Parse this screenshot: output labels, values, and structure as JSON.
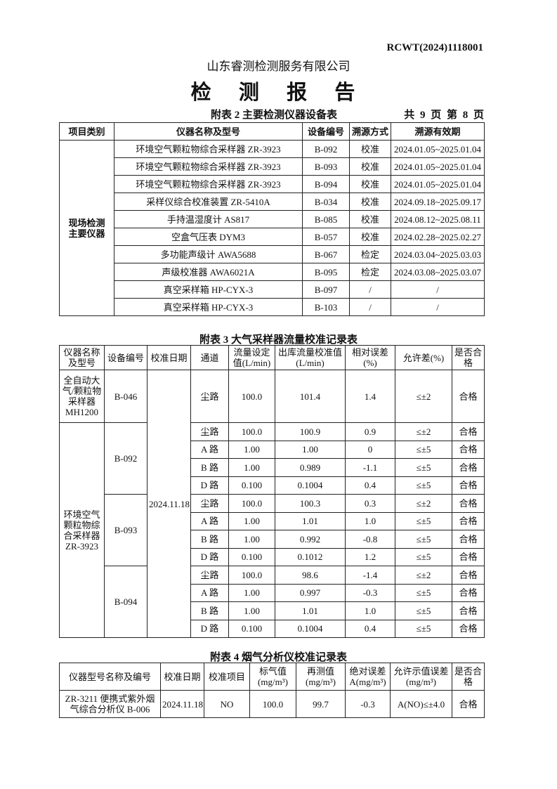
{
  "doc_no": "RCWT(2024)1118001",
  "company": "山东睿测检测服务有限公司",
  "title": "检 测 报 告",
  "table2": {
    "caption": "附表 2  主要检测仪器设备表",
    "pages": "共 9 页   第 8 页",
    "headers": [
      "项目类别",
      "仪器名称及型号",
      "设备编号",
      "溯源方式",
      "溯源有效期"
    ],
    "category": "现场检测\n主要仪器",
    "rows": [
      [
        "环境空气颗粒物综合采样器 ZR-3923",
        "B-092",
        "校准",
        "2024.01.05~2025.01.04"
      ],
      [
        "环境空气颗粒物综合采样器 ZR-3923",
        "B-093",
        "校准",
        "2024.01.05~2025.01.04"
      ],
      [
        "环境空气颗粒物综合采样器 ZR-3923",
        "B-094",
        "校准",
        "2024.01.05~2025.01.04"
      ],
      [
        "采样仪综合校准装置 ZR-5410A",
        "B-034",
        "校准",
        "2024.09.18~2025.09.17"
      ],
      [
        "手持温湿度计 AS817",
        "B-085",
        "校准",
        "2024.08.12~2025.08.11"
      ],
      [
        "空盒气压表 DYM3",
        "B-057",
        "校准",
        "2024.02.28~2025.02.27"
      ],
      [
        "多功能声级计 AWA5688",
        "B-067",
        "检定",
        "2024.03.04~2025.03.03"
      ],
      [
        "声级校准器 AWA6021A",
        "B-095",
        "检定",
        "2024.03.08~2025.03.07"
      ],
      [
        "真空采样箱 HP-CYX-3",
        "B-097",
        "/",
        "/"
      ],
      [
        "真空采样箱 HP-CYX-3",
        "B-103",
        "/",
        "/"
      ]
    ]
  },
  "table3": {
    "caption": "附表 3  大气采样器流量校准记录表",
    "headers": [
      "仪器名称及型号",
      "设备编号",
      "校准日期",
      "通道",
      "流量设定值(L/min)",
      "出库流量校准值(L/min)",
      "相对误差(%)",
      "允许差(%)",
      "是否合格"
    ],
    "date": "2024.11.18",
    "instrument1": "全自动大气/颗粒物采样器MH1200",
    "device1": "B-046",
    "row1": [
      "尘路",
      "100.0",
      "101.4",
      "1.4",
      "≤±2",
      "合格"
    ],
    "instrument2": "环境空气颗粒物综合采样器ZR-3923",
    "groups": [
      {
        "device": "B-092",
        "rows": [
          [
            "尘路",
            "100.0",
            "100.9",
            "0.9",
            "≤±2",
            "合格"
          ],
          [
            "A 路",
            "1.00",
            "1.00",
            "0",
            "≤±5",
            "合格"
          ],
          [
            "B 路",
            "1.00",
            "0.989",
            "-1.1",
            "≤±5",
            "合格"
          ],
          [
            "D 路",
            "0.100",
            "0.1004",
            "0.4",
            "≤±5",
            "合格"
          ]
        ]
      },
      {
        "device": "B-093",
        "rows": [
          [
            "尘路",
            "100.0",
            "100.3",
            "0.3",
            "≤±2",
            "合格"
          ],
          [
            "A 路",
            "1.00",
            "1.01",
            "1.0",
            "≤±5",
            "合格"
          ],
          [
            "B 路",
            "1.00",
            "0.992",
            "-0.8",
            "≤±5",
            "合格"
          ],
          [
            "D 路",
            "0.100",
            "0.1012",
            "1.2",
            "≤±5",
            "合格"
          ]
        ]
      },
      {
        "device": "B-094",
        "rows": [
          [
            "尘路",
            "100.0",
            "98.6",
            "-1.4",
            "≤±2",
            "合格"
          ],
          [
            "A 路",
            "1.00",
            "0.997",
            "-0.3",
            "≤±5",
            "合格"
          ],
          [
            "B 路",
            "1.00",
            "1.01",
            "1.0",
            "≤±5",
            "合格"
          ],
          [
            "D 路",
            "0.100",
            "0.1004",
            "0.4",
            "≤±5",
            "合格"
          ]
        ]
      }
    ]
  },
  "table4": {
    "caption": "附表 4  烟气分析仪校准记录表",
    "headers": [
      "仪器型号名称及编号",
      "校准日期",
      "校准项目",
      "标气值(mg/m³)",
      "再测值(mg/m³)",
      "绝对误差A(mg/m³)",
      "允许示值误差(mg/m³)",
      "是否合格"
    ],
    "row": [
      "ZR-3211 便携式紫外烟气综合分析仪 B-006",
      "2024.11.18",
      "NO",
      "100.0",
      "99.7",
      "-0.3",
      "A(NO)≤±4.0",
      "合格"
    ]
  }
}
